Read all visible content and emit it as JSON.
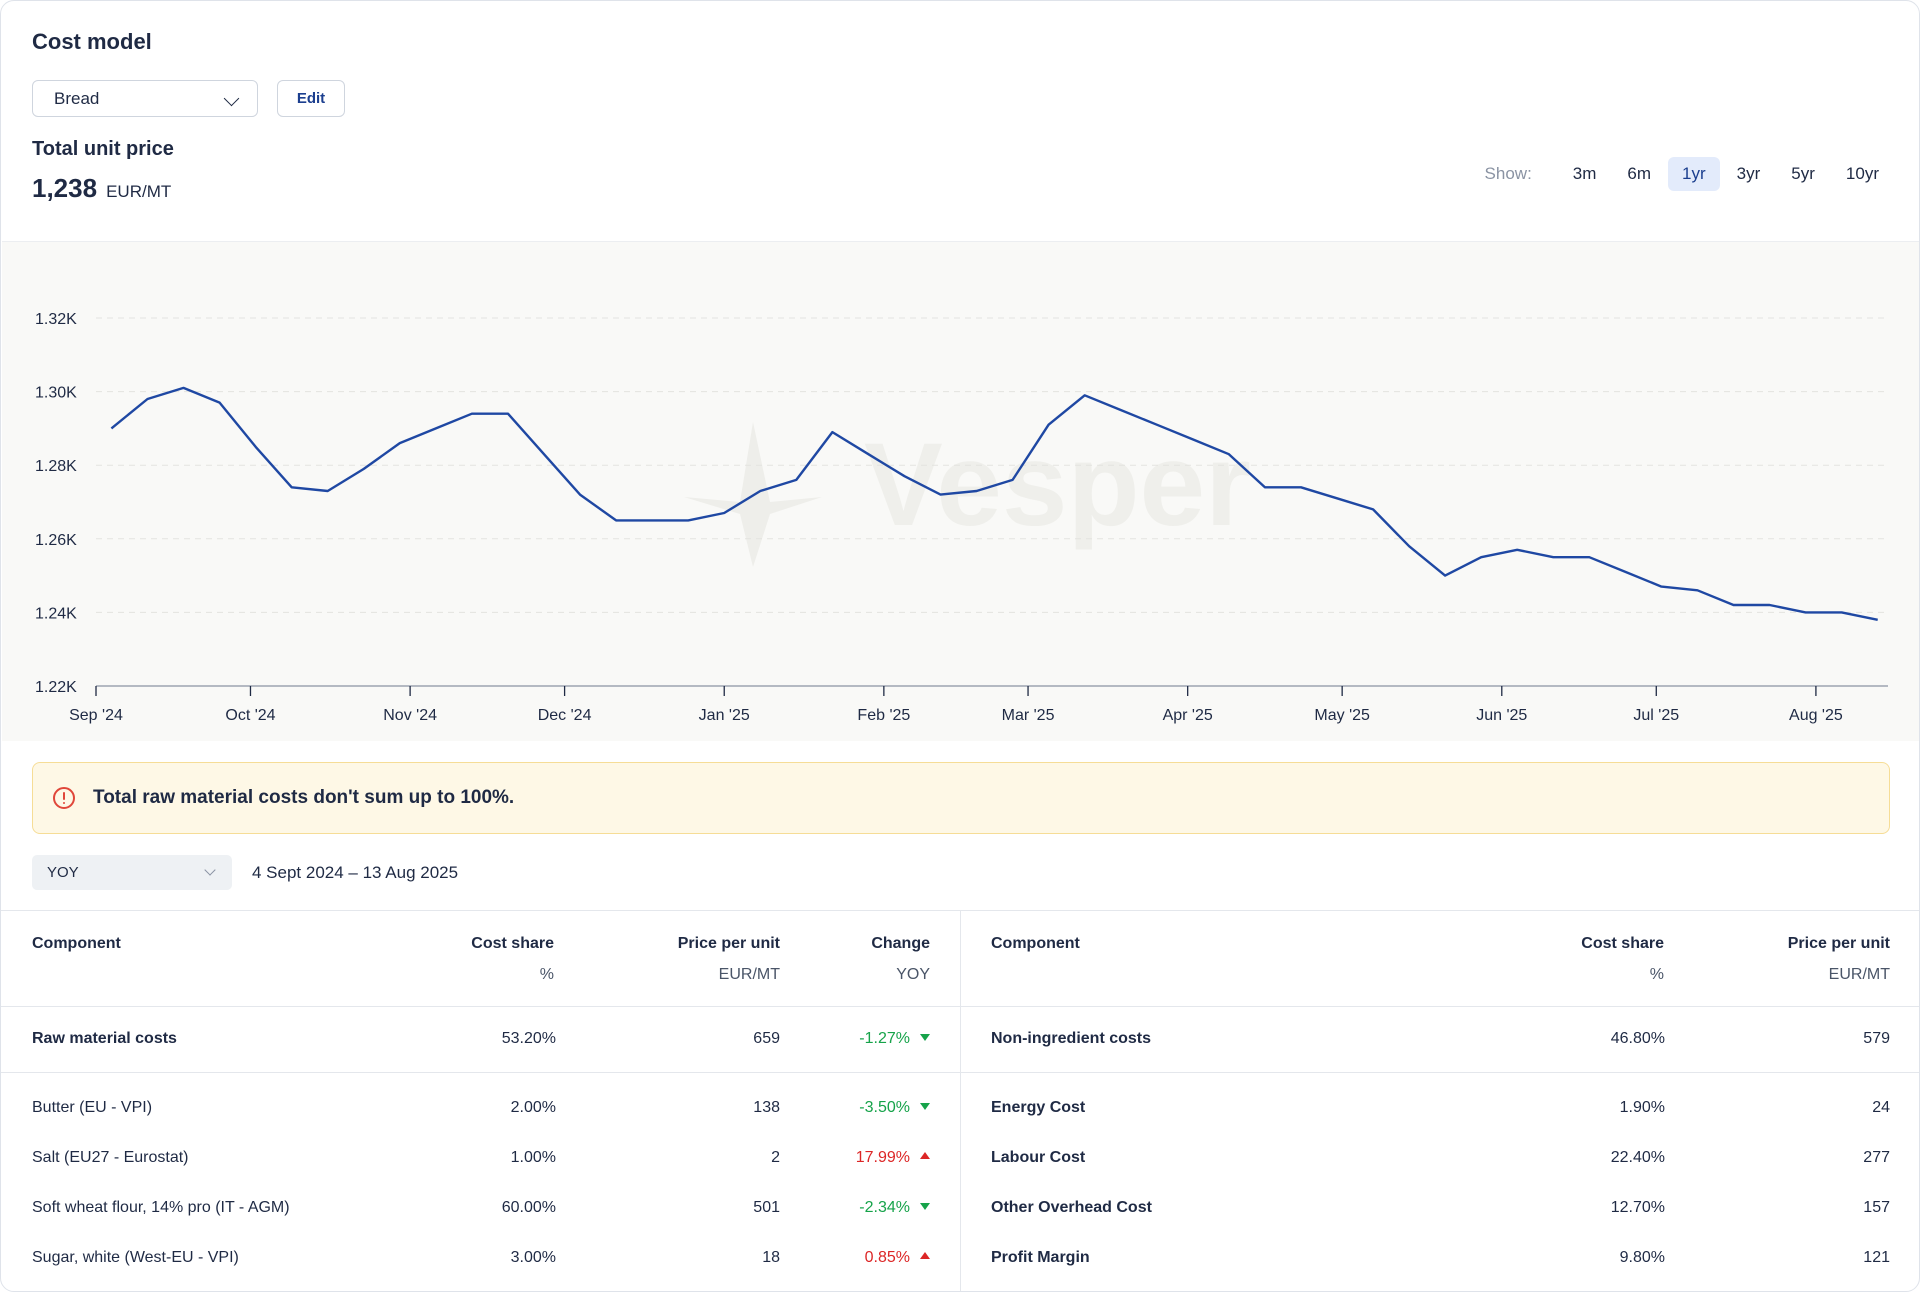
{
  "header": {
    "title": "Cost model",
    "product_select": "Bread",
    "edit_label": "Edit",
    "price_label": "Total unit price",
    "price_value": "1,238",
    "price_unit": "EUR/MT"
  },
  "range": {
    "show_label": "Show:",
    "options": [
      "3m",
      "6m",
      "1yr",
      "3yr",
      "5yr",
      "10yr"
    ],
    "active": "1yr"
  },
  "chart_data": {
    "type": "line",
    "watermark": "Vesper",
    "line_color": "#1f48a3",
    "ylim": [
      1220,
      1320
    ],
    "y_ticks": [
      1220,
      1240,
      1260,
      1280,
      1300,
      1320
    ],
    "y_tick_labels": [
      "1.22K",
      "1.24K",
      "1.26K",
      "1.28K",
      "1.30K",
      "1.32K"
    ],
    "x_tick_labels": [
      "Sep '24",
      "Oct '24",
      "Nov '24",
      "Dec '24",
      "Jan '25",
      "Feb '25",
      "Mar '25",
      "Apr '25",
      "May '25",
      "Jun '25",
      "Jul '25",
      "Aug '25"
    ],
    "x_tick_dates": [
      "2024-09-01",
      "2024-10-01",
      "2024-11-01",
      "2024-12-01",
      "2025-01-01",
      "2025-02-01",
      "2025-03-01",
      "2025-04-01",
      "2025-05-01",
      "2025-06-01",
      "2025-07-01",
      "2025-08-01"
    ],
    "x_range": [
      "2024-09-01",
      "2025-08-15"
    ],
    "grid": true,
    "series": [
      {
        "x": [
          "2024-09-04",
          "2024-09-11",
          "2024-09-18",
          "2024-09-25",
          "2024-10-02",
          "2024-10-09",
          "2024-10-16",
          "2024-10-23",
          "2024-10-30",
          "2024-11-06",
          "2024-11-13",
          "2024-11-20",
          "2024-11-27",
          "2024-12-04",
          "2024-12-11",
          "2024-12-18",
          "2024-12-25",
          "2025-01-01",
          "2025-01-08",
          "2025-01-15",
          "2025-01-22",
          "2025-01-29",
          "2025-02-05",
          "2025-02-12",
          "2025-02-19",
          "2025-02-26",
          "2025-03-05",
          "2025-03-12",
          "2025-03-19",
          "2025-03-26",
          "2025-04-02",
          "2025-04-09",
          "2025-04-16",
          "2025-04-23",
          "2025-04-30",
          "2025-05-07",
          "2025-05-14",
          "2025-05-21",
          "2025-05-28",
          "2025-06-04",
          "2025-06-11",
          "2025-06-18",
          "2025-06-25",
          "2025-07-02",
          "2025-07-09",
          "2025-07-16",
          "2025-07-23",
          "2025-07-30",
          "2025-08-06",
          "2025-08-13"
        ],
        "values": [
          1290,
          1298,
          1301,
          1297,
          1285,
          1274,
          1273,
          1279,
          1286,
          1290,
          1294,
          1294,
          1283,
          1272,
          1265,
          1265,
          1265,
          1267,
          1273,
          1276,
          1289,
          1283,
          1277,
          1272,
          1273,
          1276,
          1291,
          1299,
          1295,
          1291,
          1287,
          1283,
          1274,
          1274,
          1271,
          1268,
          1258,
          1250,
          1255,
          1257,
          1255,
          1255,
          1251,
          1247,
          1246,
          1242,
          1242,
          1240,
          1240,
          1238
        ]
      }
    ]
  },
  "alert": {
    "text": "Total raw material costs don't sum up to 100%."
  },
  "filters": {
    "period": "YOY",
    "date_range": "4 Sept 2024 – 13 Aug 2025"
  },
  "left_table": {
    "headers": {
      "component": "Component",
      "cost_share": "Cost share",
      "cost_share_unit": "%",
      "price": "Price per unit",
      "price_unit": "EUR/MT",
      "change": "Change",
      "change_unit": "YOY"
    },
    "total": {
      "name": "Raw material costs",
      "share": "53.20%",
      "price": "659",
      "change": "-1.27%",
      "dir": "down"
    },
    "rows": [
      {
        "name": "Butter (EU - VPI)",
        "share": "2.00%",
        "price": "138",
        "change": "-3.50%",
        "dir": "down"
      },
      {
        "name": "Salt (EU27 - Eurostat)",
        "share": "1.00%",
        "price": "2",
        "change": "17.99%",
        "dir": "up"
      },
      {
        "name": "Soft wheat flour, 14% pro (IT - AGM)",
        "share": "60.00%",
        "price": "501",
        "change": "-2.34%",
        "dir": "down"
      },
      {
        "name": "Sugar, white (West-EU - VPI)",
        "share": "3.00%",
        "price": "18",
        "change": "0.85%",
        "dir": "up"
      }
    ]
  },
  "right_table": {
    "headers": {
      "component": "Component",
      "cost_share": "Cost share",
      "cost_share_unit": "%",
      "price": "Price per unit",
      "price_unit": "EUR/MT"
    },
    "total": {
      "name": "Non-ingredient costs",
      "share": "46.80%",
      "price": "579"
    },
    "rows": [
      {
        "name": "Energy Cost",
        "share": "1.90%",
        "price": "24"
      },
      {
        "name": "Labour Cost",
        "share": "22.40%",
        "price": "277"
      },
      {
        "name": "Other Overhead Cost",
        "share": "12.70%",
        "price": "157"
      },
      {
        "name": "Profit Margin",
        "share": "9.80%",
        "price": "121"
      }
    ]
  }
}
